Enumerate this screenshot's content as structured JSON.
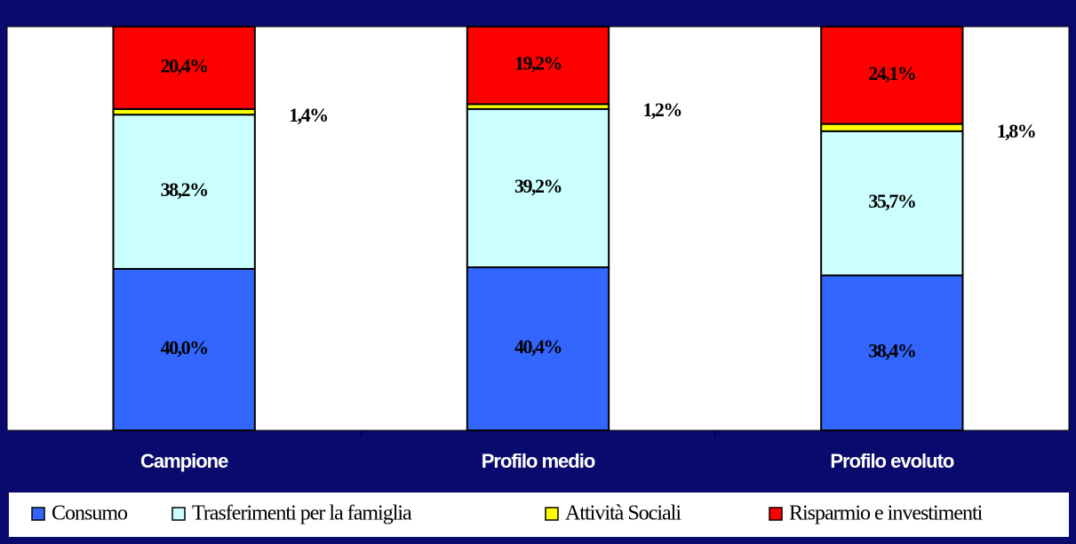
{
  "chart_data": {
    "type": "stacked_bar",
    "categories": [
      "Campione",
      "Profilo medio",
      "Profilo evoluto"
    ],
    "series": [
      {
        "name": "Consumo",
        "color": "#3366ff",
        "values": [
          40.0,
          40.4,
          38.4
        ],
        "value_labels": [
          "40,0%",
          "40,4%",
          "38,4%"
        ]
      },
      {
        "name": "Trasferimenti per la famiglia",
        "color": "#ccffff",
        "values": [
          38.2,
          39.2,
          35.7
        ],
        "value_labels": [
          "38,2%",
          "39,2%",
          "35,7%"
        ]
      },
      {
        "name": "Attività Sociali",
        "color": "#ffff00",
        "values": [
          1.4,
          1.2,
          1.8
        ],
        "value_labels": [
          "1,4%",
          "1,2%",
          "1,8%"
        ]
      },
      {
        "name": "Risparmio e investimenti",
        "color": "#ff0000",
        "values": [
          20.4,
          19.2,
          24.1
        ],
        "value_labels": [
          "20,4%",
          "19,2%",
          "24,1%"
        ]
      }
    ]
  }
}
